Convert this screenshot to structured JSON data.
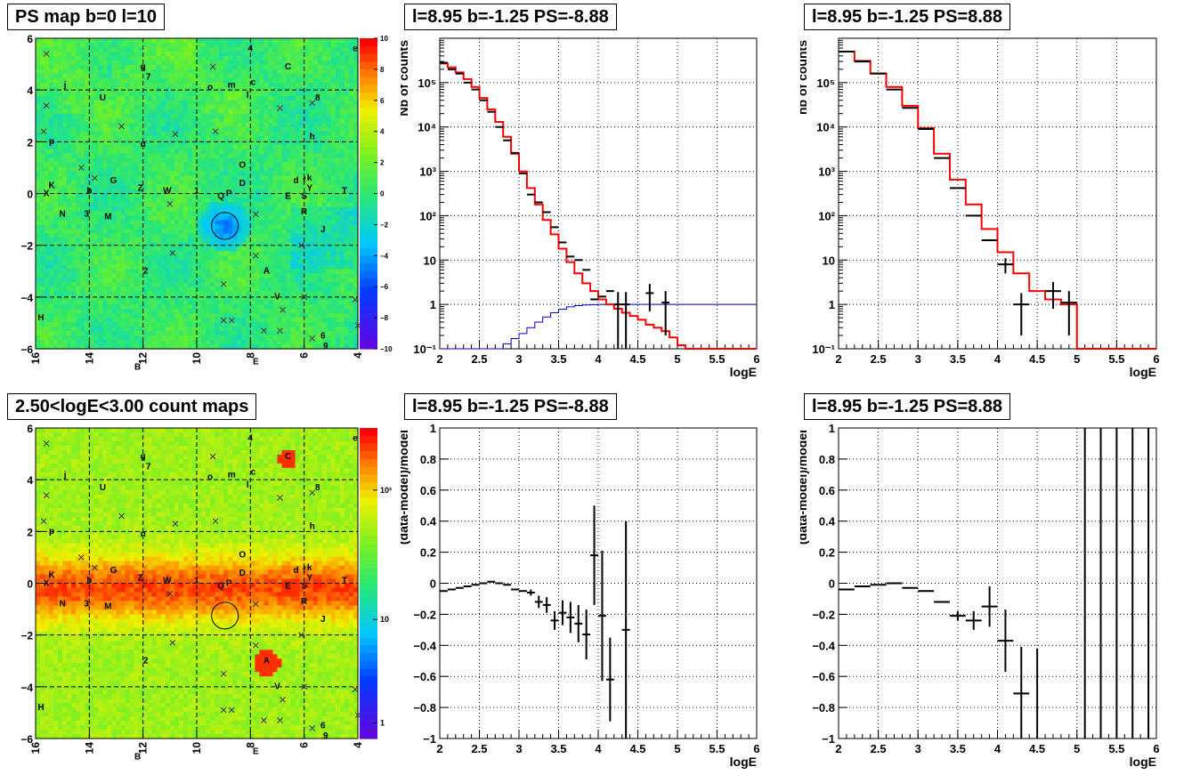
{
  "titles": {
    "map_top": "PS map b=0 l=10",
    "map_bottom": "2.50<logE<3.00 count maps",
    "spec_left": "l=8.95 b=-1.25 PS=-8.88",
    "spec_right": "l=8.95 b=-1.25 PS=8.88",
    "resid_left": "l=8.95 b=-1.25 PS=-8.88",
    "resid_right": "l=8.95 b=-1.25 PS=8.88"
  },
  "map_axes": {
    "x_ticks": [
      "16",
      "14",
      "12",
      "10",
      "8",
      "6",
      "4"
    ],
    "y_ticks": [
      "6",
      "4",
      "2",
      "0",
      "−2",
      "−4",
      "−6"
    ],
    "ps_colorbar_ticks": [
      "10",
      "8",
      "6",
      "4",
      "2",
      "0",
      "−2",
      "−4",
      "−6",
      "−8",
      "−10"
    ],
    "count_colorbar_ticks": [
      "10²",
      "10",
      "1"
    ],
    "source_labels": [
      "4",
      "e",
      "g",
      "7",
      "C",
      "j",
      "o",
      "m",
      "c",
      "l",
      "8",
      "U",
      "p",
      "n",
      "h",
      "O",
      "G",
      "d",
      "f",
      "k",
      "K",
      "X",
      "b",
      "Z",
      "W",
      "1",
      "Q",
      "P",
      "D",
      "E",
      "S",
      "Y",
      "T",
      "N",
      "3",
      "M",
      "R",
      "J",
      "2",
      "A",
      "V",
      "H",
      "6",
      "9",
      "B",
      "E"
    ]
  },
  "colors": {
    "data": "#000000",
    "model": "#ff0000",
    "ps_model": "#0000cc"
  },
  "chart_data": [
    {
      "type": "heatmap",
      "title": "PS map b=0 l=10",
      "xlim": [
        16,
        4
      ],
      "ylim": [
        -6,
        6
      ],
      "zlim": [
        -10,
        10
      ],
      "marked_source": {
        "l": 8.95,
        "b": -1.25,
        "value": -8.88
      }
    },
    {
      "type": "line",
      "title": "l=8.95 b=-1.25 PS=-8.88",
      "xlabel": "logE",
      "ylabel": "Nb of counts",
      "xlim": [
        2,
        6
      ],
      "ylim": [
        0.1,
        1000000
      ],
      "yscale": "log",
      "x_ticks": [
        "2",
        "2.5",
        "3",
        "3.5",
        "4",
        "4.5",
        "5",
        "5.5",
        "6"
      ],
      "y_ticks": [
        "10⁻¹",
        "1",
        "10",
        "10²",
        "10³",
        "10⁴",
        "10⁵"
      ],
      "data_points": {
        "x": [
          2.05,
          2.15,
          2.25,
          2.35,
          2.45,
          2.55,
          2.65,
          2.75,
          2.85,
          2.95,
          3.05,
          3.15,
          3.25,
          3.35,
          3.45,
          3.55,
          3.65,
          3.75,
          3.85,
          3.95,
          4.05,
          4.15,
          4.25,
          4.35,
          4.65,
          4.85
        ],
        "y": [
          280000,
          200000,
          160000,
          100000,
          70000,
          40000,
          22000,
          10000,
          5000,
          2600,
          900,
          300,
          200,
          120,
          55,
          25,
          12,
          10,
          6,
          1.3,
          1.5,
          2,
          1,
          1,
          1.8,
          1.1
        ],
        "xerr": 0.05,
        "yerr_low": [
          0,
          0,
          0,
          0,
          0,
          0,
          0,
          0,
          0,
          0,
          0,
          0,
          0,
          0,
          0,
          0,
          0,
          0,
          0,
          0,
          0,
          0,
          0.9,
          0.9,
          1.1,
          0.9
        ]
      },
      "model_step": {
        "edges": [
          2.0,
          2.1,
          2.2,
          2.3,
          2.4,
          2.5,
          2.6,
          2.7,
          2.8,
          2.9,
          3.0,
          3.1,
          3.2,
          3.3,
          3.4,
          3.5,
          3.6,
          3.7,
          3.8,
          3.9,
          4.0,
          4.1,
          4.2,
          4.3,
          4.4,
          4.5,
          4.6,
          4.7,
          4.8,
          4.9,
          5.0,
          5.1,
          6.0
        ],
        "values": [
          270000,
          220000,
          170000,
          120000,
          80000,
          45000,
          25000,
          13000,
          6000,
          2500,
          1000,
          420,
          180,
          80,
          38,
          18,
          9,
          5,
          3,
          2,
          1.3,
          1.0,
          0.8,
          0.65,
          0.55,
          0.45,
          0.35,
          0.3,
          0.25,
          0.18,
          0.12,
          0.1
        ]
      },
      "ps_model_step": {
        "edges": [
          2.0,
          2.8,
          2.9,
          3.0,
          3.1,
          3.2,
          3.3,
          3.4,
          3.5,
          3.6,
          3.7,
          3.8,
          3.9,
          4.0,
          4.2,
          6.0
        ],
        "values": [
          0.1,
          0.13,
          0.17,
          0.22,
          0.3,
          0.4,
          0.52,
          0.65,
          0.78,
          0.88,
          0.94,
          0.97,
          0.99,
          1.0,
          1.0
        ]
      }
    },
    {
      "type": "line",
      "title": "l=8.95 b=-1.25 PS=8.88",
      "xlabel": "logE",
      "ylabel": "nb of counts",
      "xlim": [
        2,
        6
      ],
      "ylim": [
        0.1,
        1000000
      ],
      "yscale": "log",
      "x_ticks": [
        "2",
        "2.5",
        "3",
        "3.5",
        "4",
        "4.5",
        "5",
        "5.5",
        "6"
      ],
      "y_ticks": [
        "10⁻¹",
        "1",
        "10",
        "10²",
        "10³",
        "10⁴",
        "10⁵"
      ],
      "data_points": {
        "x": [
          2.1,
          2.3,
          2.5,
          2.7,
          2.9,
          3.1,
          3.3,
          3.5,
          3.7,
          3.9,
          4.1,
          4.3,
          4.7,
          4.9
        ],
        "y": [
          500000,
          300000,
          160000,
          70000,
          27000,
          9000,
          2000,
          420,
          100,
          28,
          8,
          1,
          2,
          1.1
        ],
        "xerr": 0.1,
        "yerr_low": [
          0,
          0,
          0,
          0,
          0,
          0,
          0,
          0,
          0,
          0,
          3,
          0.8,
          1.2,
          0.9
        ]
      },
      "model_step": {
        "edges": [
          2.0,
          2.2,
          2.4,
          2.6,
          2.8,
          3.0,
          3.2,
          3.4,
          3.6,
          3.8,
          4.0,
          4.2,
          4.4,
          4.6,
          4.8,
          5.0,
          6.0
        ],
        "values": [
          500000,
          310000,
          160000,
          80000,
          30000,
          9500,
          2500,
          650,
          180,
          50,
          15,
          5,
          2,
          1.3,
          1.0,
          0.1
        ]
      }
    },
    {
      "type": "scatter",
      "title": "l=8.95 b=-1.25 PS=-8.88",
      "xlabel": "logE",
      "ylabel": "(data-model)/model",
      "xlim": [
        2,
        6
      ],
      "ylim": [
        -1,
        1
      ],
      "x_ticks": [
        "2",
        "2.5",
        "3",
        "3.5",
        "4",
        "4.5",
        "5",
        "5.5",
        "6"
      ],
      "y_ticks": [
        "−1",
        "−0.8",
        "−0.6",
        "−0.4",
        "−0.2",
        "0",
        "0.2",
        "0.4",
        "0.6",
        "0.8",
        "1"
      ],
      "x": [
        2.05,
        2.15,
        2.25,
        2.35,
        2.45,
        2.55,
        2.65,
        2.75,
        2.85,
        2.95,
        3.05,
        3.15,
        3.25,
        3.35,
        3.45,
        3.55,
        3.65,
        3.75,
        3.85,
        3.95,
        4.05,
        4.15,
        4.35
      ],
      "y": [
        -0.05,
        -0.04,
        -0.03,
        -0.02,
        -0.01,
        0.0,
        0.01,
        0.0,
        -0.01,
        -0.04,
        -0.05,
        -0.06,
        -0.12,
        -0.14,
        -0.24,
        -0.19,
        -0.22,
        -0.26,
        -0.33,
        0.18,
        -0.21,
        -0.62,
        -0.3
      ],
      "yerr": [
        0,
        0,
        0,
        0,
        0,
        0,
        0,
        0,
        0,
        0,
        0,
        0.02,
        0.04,
        0.05,
        0.06,
        0.08,
        0.1,
        0.12,
        0.16,
        0.32,
        0.42,
        0.27,
        0.7
      ]
    },
    {
      "type": "scatter",
      "title": "l=8.95 b=-1.25 PS=8.88",
      "xlabel": "logE",
      "ylabel": "(data-model)/model",
      "xlim": [
        2,
        6
      ],
      "ylim": [
        -1,
        1
      ],
      "x_ticks": [
        "2",
        "2.5",
        "3",
        "3.5",
        "4",
        "4.5",
        "5",
        "5.5",
        "6"
      ],
      "y_ticks": [
        "−1",
        "−0.8",
        "−0.6",
        "−0.4",
        "−0.2",
        "0",
        "0.2",
        "0.4",
        "0.6",
        "0.8",
        "1"
      ],
      "x": [
        2.1,
        2.3,
        2.5,
        2.7,
        2.9,
        3.1,
        3.3,
        3.5,
        3.7,
        3.9,
        4.1,
        4.3
      ],
      "y": [
        -0.04,
        -0.02,
        -0.01,
        0.0,
        -0.03,
        -0.05,
        -0.12,
        -0.21,
        -0.24,
        -0.15,
        -0.37,
        -0.71
      ],
      "yerr": [
        0,
        0,
        0,
        0,
        0,
        0,
        0,
        0.03,
        0.06,
        0.13,
        0.2,
        0.3
      ],
      "vertical_lines_x": [
        4.5,
        5.1,
        5.3,
        5.5,
        5.7,
        5.9
      ]
    }
  ]
}
